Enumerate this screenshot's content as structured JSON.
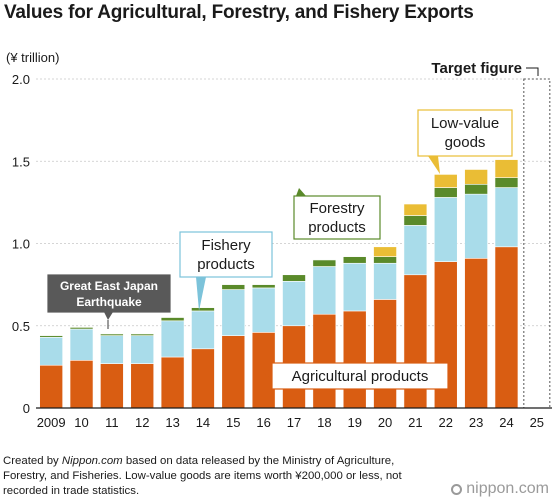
{
  "title": "Values for Agricultural, Forestry, and Fishery Exports",
  "source": {
    "prefix": "Created by ",
    "site": "Nippon.com",
    "text": " based on data released by the Ministry of Agriculture, Forestry, and Fisheries. Low-value goods are items worth ¥200,000 or less, not recorded in trade statistics."
  },
  "logo": {
    "text": "nippon.com"
  },
  "chart_data": {
    "type": "bar",
    "stacked": true,
    "ylabel": "(¥ trillion)",
    "ylim": [
      0,
      2.0
    ],
    "yticks": [
      "0",
      "0.5",
      "1.0",
      "1.5",
      "2.0"
    ],
    "categories": [
      "2009",
      "10",
      "11",
      "12",
      "13",
      "14",
      "15",
      "16",
      "17",
      "18",
      "19",
      "20",
      "21",
      "22",
      "23",
      "24",
      "25"
    ],
    "series": [
      {
        "name": "Agricultural products",
        "color": "#d95d12",
        "values": [
          0.26,
          0.29,
          0.27,
          0.27,
          0.31,
          0.36,
          0.44,
          0.46,
          0.5,
          0.57,
          0.59,
          0.66,
          0.81,
          0.89,
          0.91,
          0.98,
          null
        ]
      },
      {
        "name": "Fishery products",
        "color": "#a9dcea",
        "values": [
          0.17,
          0.19,
          0.17,
          0.17,
          0.22,
          0.23,
          0.28,
          0.27,
          0.27,
          0.29,
          0.29,
          0.22,
          0.3,
          0.39,
          0.39,
          0.36,
          null
        ]
      },
      {
        "name": "Forestry products",
        "color": "#5a8a2a",
        "values": [
          0.01,
          0.01,
          0.01,
          0.01,
          0.02,
          0.02,
          0.03,
          0.02,
          0.04,
          0.04,
          0.04,
          0.04,
          0.06,
          0.06,
          0.06,
          0.06,
          null
        ]
      },
      {
        "name": "Low-value goods",
        "color": "#eabd35",
        "values": [
          0,
          0,
          0,
          0,
          0,
          0,
          0,
          0,
          0,
          0,
          0,
          0.06,
          0.07,
          0.08,
          0.09,
          0.11,
          null
        ]
      }
    ],
    "target": {
      "category": "25",
      "value": 2.0,
      "label": "Target figure"
    },
    "annotations": [
      {
        "text": "Great East Japan Earthquake",
        "category": "11"
      },
      {
        "text": "Fishery products",
        "category": "14"
      },
      {
        "text": "Forestry products",
        "category": "18"
      },
      {
        "text": "Low-value goods",
        "category": "22"
      },
      {
        "text": "Agricultural products",
        "category": "17"
      }
    ]
  }
}
